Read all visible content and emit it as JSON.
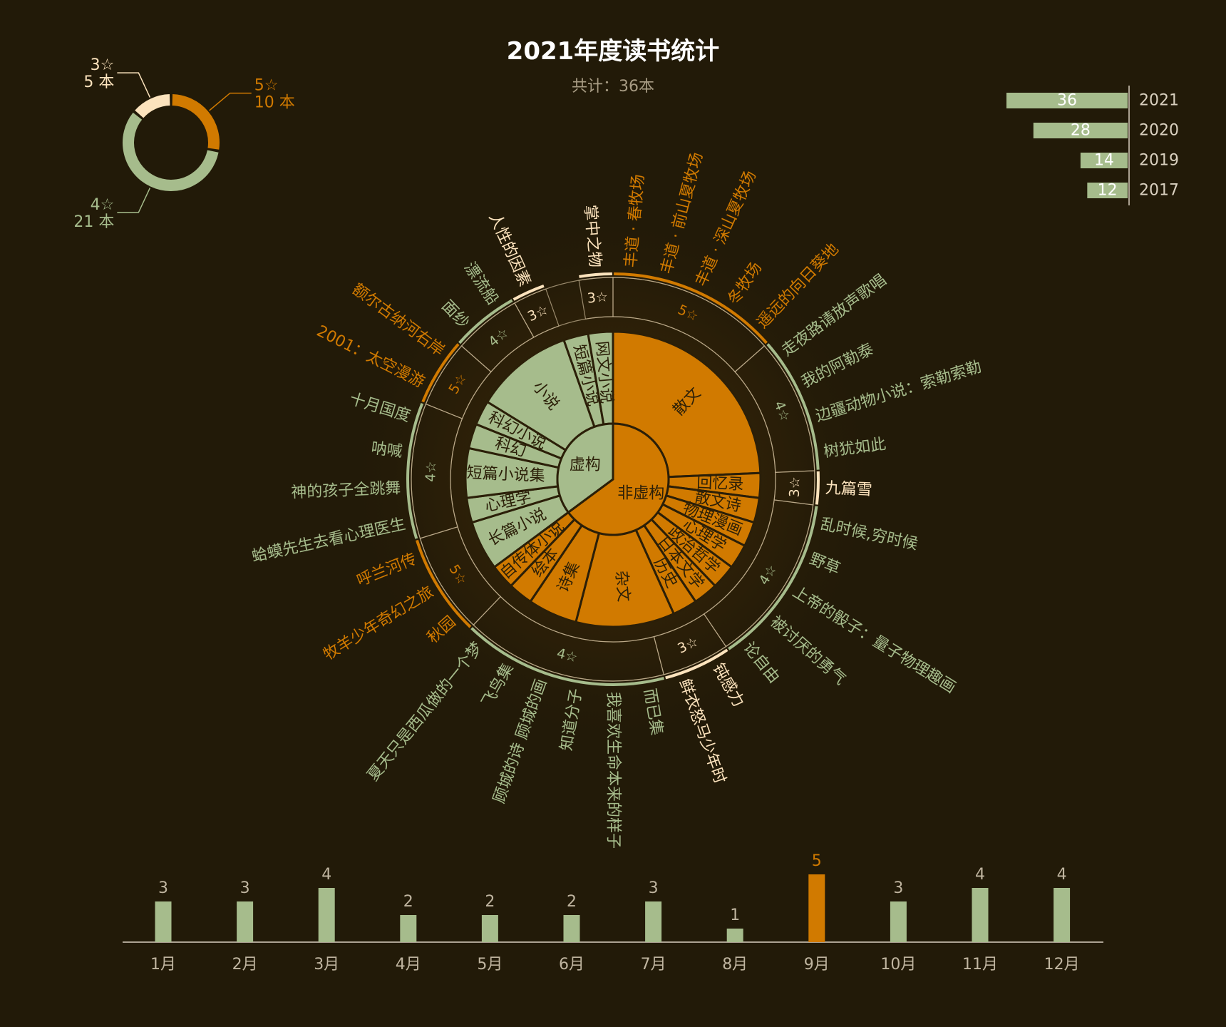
{
  "header": {
    "title": "2021年度读书统计",
    "total_label": "共计：36本"
  },
  "colors": {
    "background": "#221a08",
    "green": "#a6bc8c",
    "orange": "#d17a00",
    "cream": "#fce3bd",
    "dark_line": "#2b1f08",
    "ring_line": "#c9b695",
    "axis_text": "#c0b5a0"
  },
  "rating_donut": {
    "items": [
      {
        "stars": "5☆",
        "count": "10 本",
        "value": 10,
        "color": "#d17a00"
      },
      {
        "stars": "4☆",
        "count": "21 本",
        "value": 21,
        "color": "#a6bc8c"
      },
      {
        "stars": "3☆",
        "count": "5 本",
        "value": 5,
        "color": "#fce3bd"
      }
    ]
  },
  "yearly_totals": [
    {
      "year": "2021",
      "value": 36
    },
    {
      "year": "2020",
      "value": 28
    },
    {
      "year": "2019",
      "value": 14
    },
    {
      "year": "2017",
      "value": 12
    }
  ],
  "monthly_counts": {
    "months": [
      "1月",
      "2月",
      "3月",
      "4月",
      "5月",
      "6月",
      "7月",
      "8月",
      "9月",
      "10月",
      "11月",
      "12月"
    ],
    "values": [
      3,
      3,
      4,
      2,
      2,
      2,
      3,
      1,
      5,
      3,
      4,
      4
    ],
    "highlight_index": 8
  },
  "sunburst": {
    "center": [
      {
        "label": "非虚构",
        "color": "#d17a00",
        "genres": [
          {
            "label": "散文",
            "books": [
              {
                "title": "丰道 · 春牧场",
                "rating": 5
              },
              {
                "title": "丰道 · 前山夏牧场",
                "rating": 5
              },
              {
                "title": "丰道 · 深山夏牧场",
                "rating": 5
              },
              {
                "title": "冬牧场",
                "rating": 5
              },
              {
                "title": "遥远的向日葵地",
                "rating": 5
              },
              {
                "title": "走夜路请放声歌唱",
                "rating": 4
              },
              {
                "title": "我的阿勒泰",
                "rating": 4
              },
              {
                "title": "边疆动物小说：索勒索勒",
                "rating": 4
              },
              {
                "title": "树犹如此",
                "rating": 4
              }
            ]
          },
          {
            "label": "回忆录",
            "books": [
              {
                "title": "九篇雪",
                "rating": 3
              }
            ]
          },
          {
            "label": "散文诗",
            "books": [
              {
                "title": "乱时候,穷时候",
                "rating": 4
              }
            ]
          },
          {
            "label": "物理漫画",
            "books": [
              {
                "title": "野草",
                "rating": 4
              }
            ]
          },
          {
            "label": "心理学",
            "books": [
              {
                "title": "上帝的骰子：量子物理趣画",
                "rating": 4
              }
            ]
          },
          {
            "label": "政治哲学",
            "books": [
              {
                "title": "被讨厌的勇气",
                "rating": 4
              }
            ]
          },
          {
            "label": "日本文学",
            "books": [
              {
                "title": "论自由",
                "rating": 4
              }
            ]
          },
          {
            "label": "历史",
            "books": [
              {
                "title": "钝感力",
                "rating": 3
              }
            ]
          },
          {
            "label": "杂文",
            "books": [
              {
                "title": "鲜衣怒马少年时",
                "rating": 3
              },
              {
                "title": "而已集",
                "rating": 4
              },
              {
                "title": "我喜欢生命本来的样子",
                "rating": 4
              },
              {
                "title": "知道分子",
                "rating": 4
              }
            ]
          },
          {
            "label": "诗集",
            "books": [
              {
                "title": "顾城的诗 顾城的画",
                "rating": 4
              },
              {
                "title": "飞鸟集",
                "rating": 4
              }
            ]
          },
          {
            "label": "绘本",
            "books": [
              {
                "title": "夏天只是西瓜做的一个梦",
                "rating": 4
              }
            ]
          },
          {
            "label": "自传体小说",
            "books": [
              {
                "title": "秋园",
                "rating": 5
              }
            ]
          }
        ]
      },
      {
        "label": "虚构",
        "color": "#a6bc8c",
        "genres": [
          {
            "label": "长篇小说",
            "books": [
              {
                "title": "牧羊少年奇幻之旅",
                "rating": 5
              },
              {
                "title": "呼兰河传",
                "rating": 5
              }
            ]
          },
          {
            "label": "心理学",
            "books": [
              {
                "title": "蛤蟆先生去看心理医生",
                "rating": 4
              }
            ]
          },
          {
            "label": "短篇小说集",
            "books": [
              {
                "title": "神的孩子全跳舞",
                "rating": 4
              },
              {
                "title": "呐喊",
                "rating": 4
              }
            ]
          },
          {
            "label": "科幻",
            "books": [
              {
                "title": "十月国度",
                "rating": 4
              }
            ]
          },
          {
            "label": "科幻小说",
            "books": [
              {
                "title": "2001：太空漫游",
                "rating": 5
              }
            ]
          },
          {
            "label": "小说",
            "books": [
              {
                "title": "额尔古纳河右岸",
                "rating": 5
              },
              {
                "title": "面纱",
                "rating": 4
              },
              {
                "title": "漂流船",
                "rating": 4
              },
              {
                "title": "人性的因素",
                "rating": 3
              }
            ]
          },
          {
            "label": "短篇小说",
            "books": []
          },
          {
            "label": "网文小说",
            "books": [
              {
                "title": "掌中之物",
                "rating": 3
              }
            ]
          }
        ]
      }
    ],
    "rating_labels": {
      "5": "5☆",
      "4": "4☆",
      "3": "3☆"
    }
  }
}
